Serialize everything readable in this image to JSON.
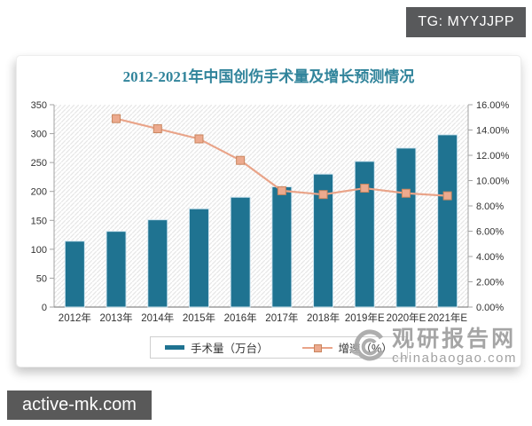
{
  "badges": {
    "tg": "TG: MYYJJPP",
    "site": "active-mk.com"
  },
  "watermark": {
    "brand": "观研报告网",
    "domain": "chinabaogao.com"
  },
  "chart": {
    "title": "2012-2021年中国创伤手术量及增长预测情况",
    "legend": [
      {
        "label": "手术量（万台）",
        "type": "bar",
        "color": "#1f7391"
      },
      {
        "label": "增速（%）",
        "type": "line",
        "color": "#e9a489"
      }
    ]
  },
  "colors": {
    "bar": "#1f7391",
    "bar_edge": "#cfe5f0",
    "line": "#e9a489",
    "marker_fill": "#ecaa8e",
    "marker_edge": "#c9855e",
    "title": "#31849b",
    "axis": "#a3a3a3",
    "badge_bg": "#58595b"
  },
  "chart_data": {
    "type": "bar+line",
    "title": "2012-2021年中国创伤手术量及增长预测情况",
    "categories": [
      "2012年",
      "2013年",
      "2014年",
      "2015年",
      "2016年",
      "2017年",
      "2018年",
      "2019年E",
      "2020年E",
      "2021年E"
    ],
    "series": [
      {
        "name": "手术量（万台）",
        "type": "bar",
        "axis": "left",
        "values": [
          114,
          131,
          151,
          170,
          190,
          208,
          230,
          252,
          275,
          298
        ]
      },
      {
        "name": "增速（%）",
        "type": "line",
        "axis": "right",
        "values": [
          null,
          14.9,
          14.1,
          13.3,
          11.6,
          9.2,
          8.9,
          9.4,
          9.0,
          8.8
        ]
      }
    ],
    "left_axis": {
      "min": 0,
      "max": 350,
      "step": 50,
      "tick_labels": [
        "0",
        "50",
        "100",
        "150",
        "200",
        "250",
        "300",
        "350"
      ]
    },
    "right_axis": {
      "min": 0,
      "max": 16,
      "step": 2,
      "tick_labels": [
        "0.00%",
        "2.00%",
        "4.00%",
        "6.00%",
        "8.00%",
        "10.00%",
        "12.00%",
        "14.00%",
        "16.00%"
      ]
    },
    "grid": false,
    "plot_background": "diagonal-hatch",
    "legend_position": "bottom"
  }
}
